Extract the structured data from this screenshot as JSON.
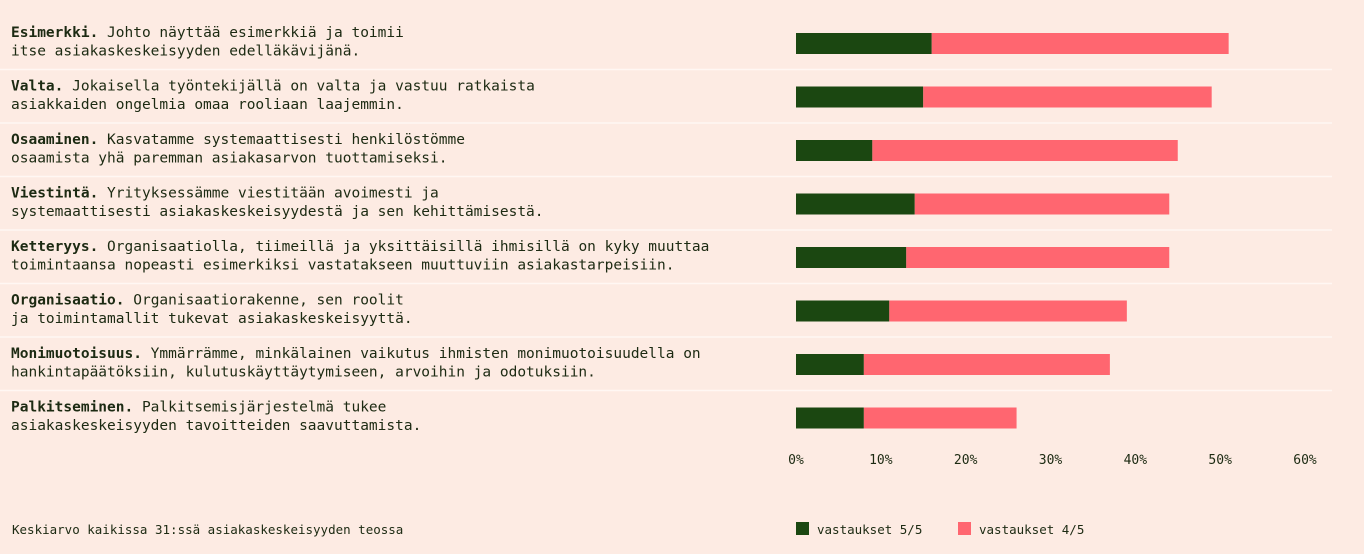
{
  "chart_data": {
    "type": "bar",
    "orientation": "horizontal",
    "stacked": true,
    "categories": [
      {
        "title": "Esimerkki.",
        "lines": [
          "Johto näyttää esimerkkiä ja toimii",
          "itse asiakaskeskeisyyden edelläkävijänä."
        ]
      },
      {
        "title": "Valta.",
        "lines": [
          "Jokaisella työntekijällä on valta ja vastuu ratkaista",
          "asiakkaiden ongelmia omaa rooliaan laajemmin."
        ]
      },
      {
        "title": "Osaaminen.",
        "lines": [
          "Kasvatamme systemaattisesti henkilöstömme",
          "osaamista yhä paremman asiakasarvon tuottamiseksi."
        ]
      },
      {
        "title": "Viestintä.",
        "lines": [
          "Yrityksessämme viestitään avoimesti ja",
          "systemaattisesti asiakaskeskeisyydestä ja sen kehittämisestä."
        ]
      },
      {
        "title": "Ketteryys.",
        "lines": [
          "Organisaatiolla, tiimeillä ja yksittäisillä ihmisillä on kyky muuttaa",
          "toimintaansa nopeasti esimerkiksi vastatakseen muuttuviin asiakastarpeisiin."
        ]
      },
      {
        "title": "Organisaatio.",
        "lines": [
          "Organisaatiorakenne, sen roolit",
          "ja toimintamallit tukevat asiakaskeskeisyyttä."
        ]
      },
      {
        "title": "Monimuotoisuus.",
        "lines": [
          "Ymmärrämme, minkälainen vaikutus ihmisten monimuotoisuudella on",
          "hankintapäätöksiin, kulutuskäyttäytymiseen, arvoihin ja odotuksiin."
        ]
      },
      {
        "title": "Palkitseminen.",
        "lines": [
          "Palkitsemisjärjestelmä tukee",
          "asiakaskeskeisyyden tavoitteiden saavuttamista."
        ]
      }
    ],
    "series": [
      {
        "name": "vastaukset 5/5",
        "color": "#1b4711",
        "values": [
          16,
          15,
          9,
          14,
          13,
          11,
          8,
          8
        ]
      },
      {
        "name": "vastaukset 4/5",
        "color": "#ff6670",
        "values": [
          35,
          34,
          36,
          30,
          31,
          28,
          29,
          18
        ]
      }
    ],
    "xlim": [
      0,
      60
    ],
    "xticks": [
      "0%",
      "10%",
      "20%",
      "30%",
      "40%",
      "50%",
      "60%"
    ],
    "grid": false,
    "legend_position": "bottom-right"
  },
  "footnote": "Keskiarvo kaikissa 31:ssä asiakaskeskeisyyden teossa"
}
